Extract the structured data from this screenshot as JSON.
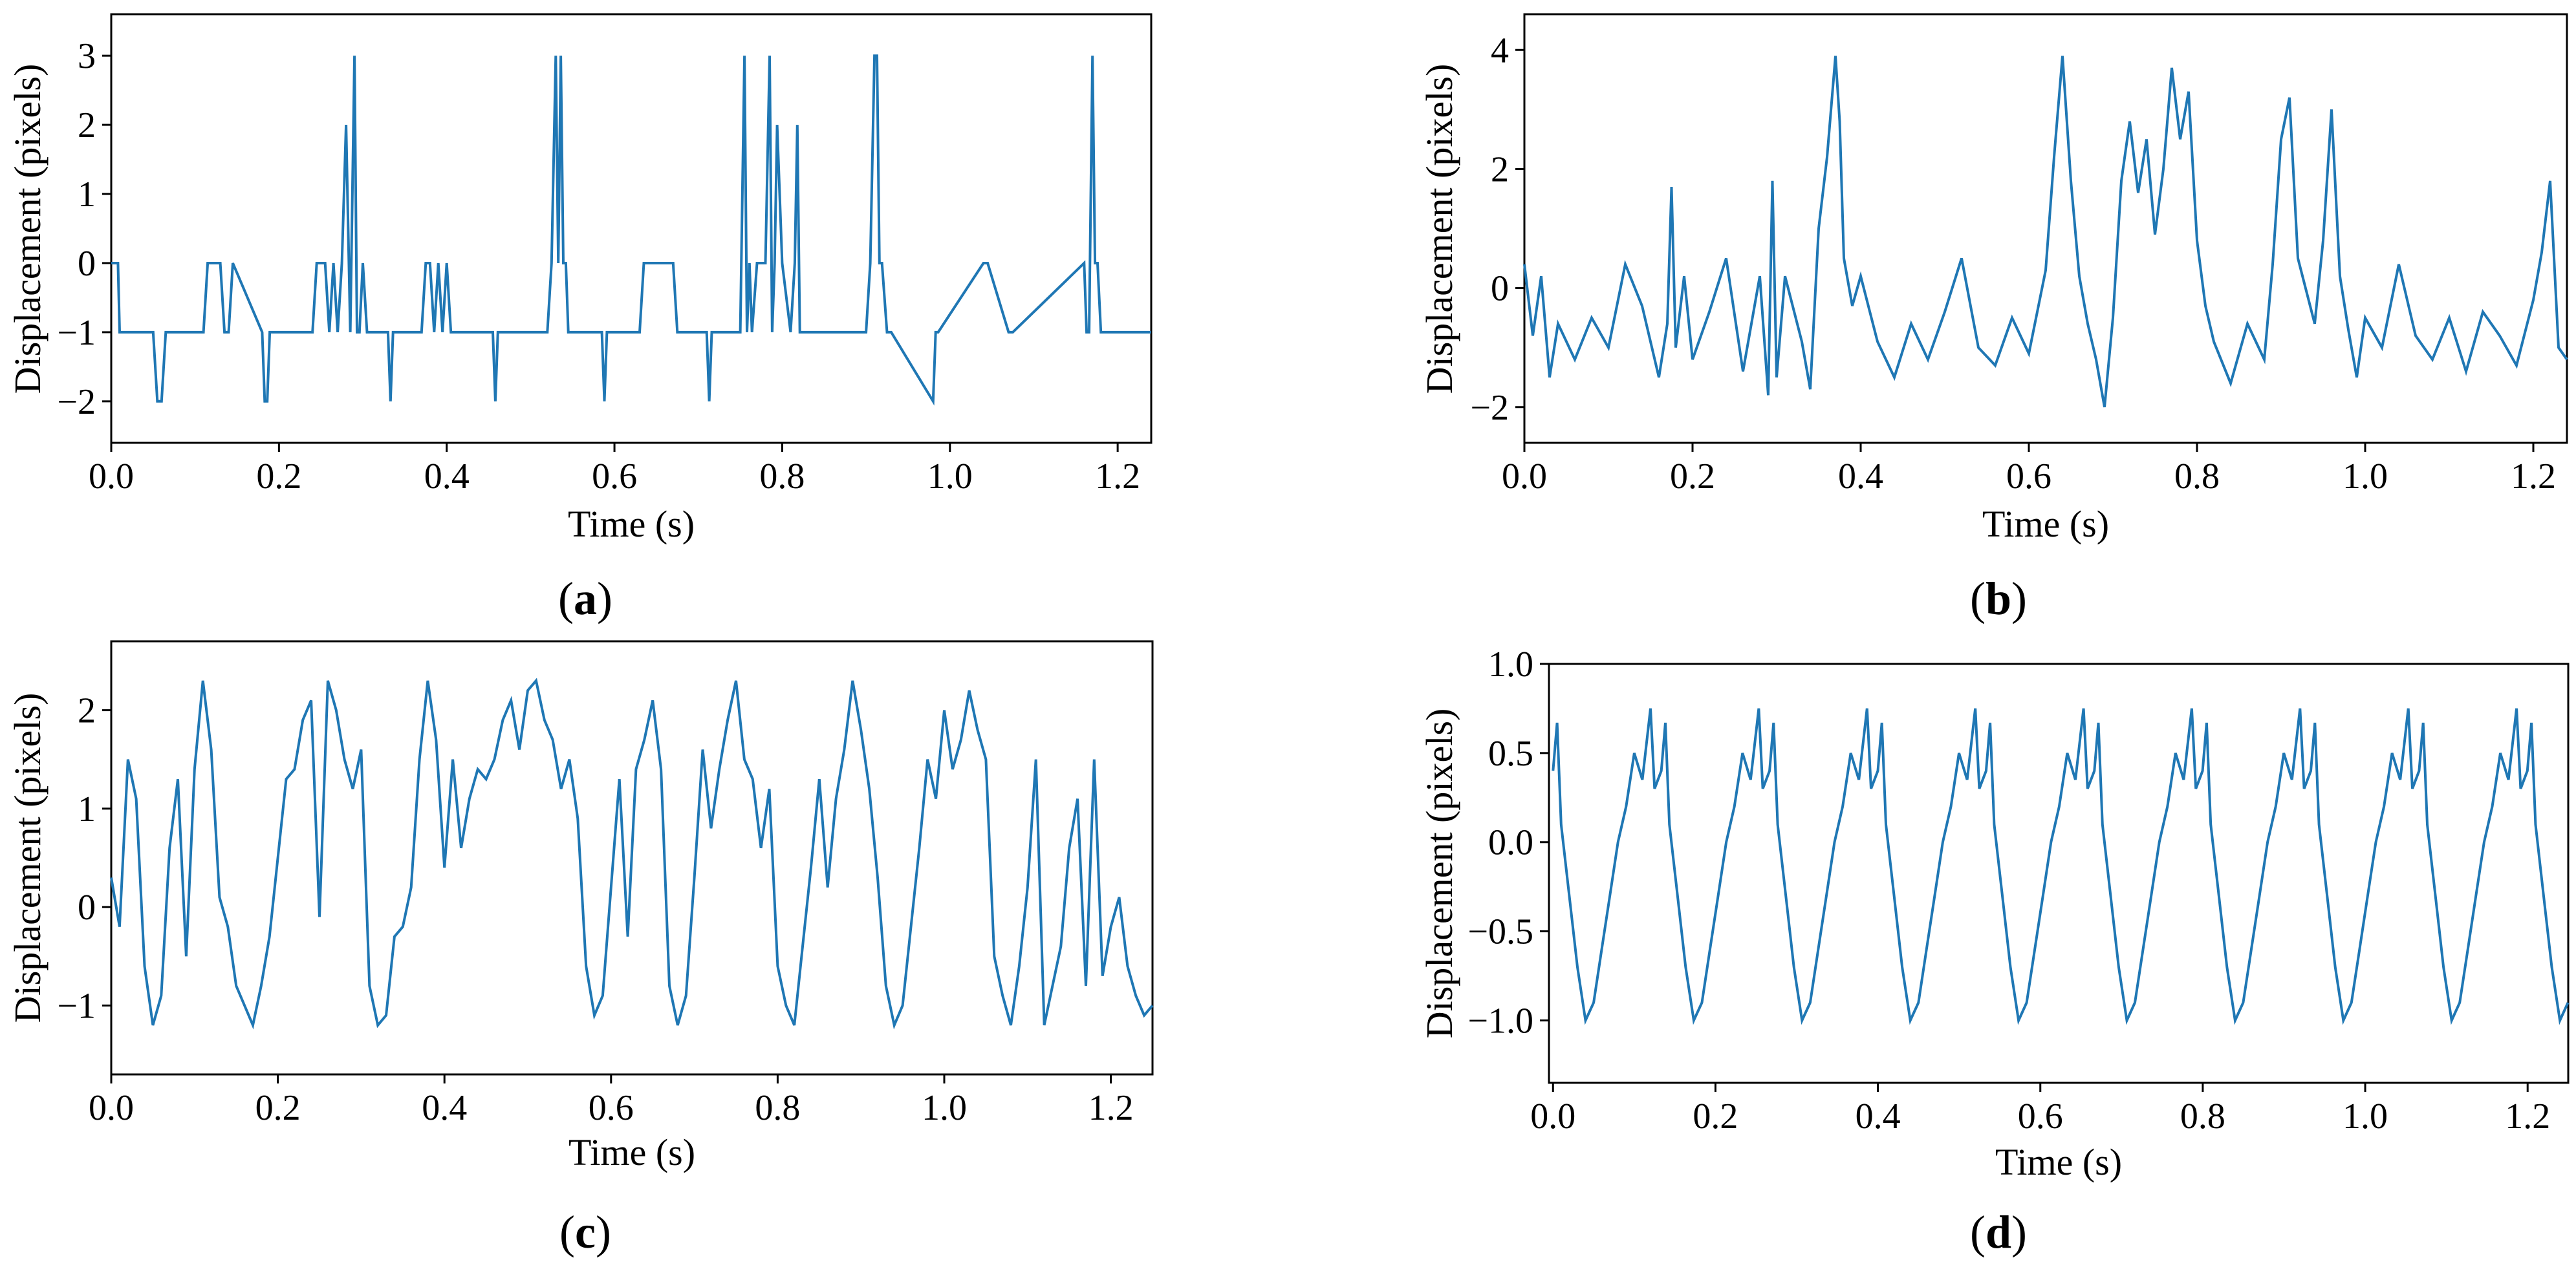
{
  "chart_data": [
    {
      "type": "line",
      "caption": {
        "open": "(",
        "letter": "a",
        "close": ")"
      },
      "xlabel": "Time (s)",
      "ylabel": "Displacement (pixels)",
      "xlim": [
        0.0,
        1.24
      ],
      "ylim": [
        -2.6,
        3.6
      ],
      "xticks": [
        0.0,
        0.2,
        0.4,
        0.6,
        0.8,
        1.0,
        1.2
      ],
      "xtick_labels": [
        "0.0",
        "0.2",
        "0.4",
        "0.6",
        "0.8",
        "1.0",
        "1.2"
      ],
      "yticks": [
        -2,
        -1,
        0,
        1,
        2,
        3
      ],
      "ytick_labels": [
        "−2",
        "−1",
        "0",
        "1",
        "2",
        "3"
      ],
      "color": "#1f77b4",
      "x": [
        0.0,
        0.008,
        0.01,
        0.05,
        0.055,
        0.06,
        0.065,
        0.11,
        0.115,
        0.13,
        0.135,
        0.14,
        0.145,
        0.18,
        0.183,
        0.186,
        0.189,
        0.24,
        0.245,
        0.255,
        0.26,
        0.265,
        0.27,
        0.275,
        0.28,
        0.285,
        0.29,
        0.293,
        0.296,
        0.3,
        0.305,
        0.33,
        0.333,
        0.336,
        0.37,
        0.375,
        0.38,
        0.385,
        0.39,
        0.395,
        0.4,
        0.405,
        0.455,
        0.458,
        0.461,
        0.52,
        0.525,
        0.53,
        0.533,
        0.536,
        0.539,
        0.542,
        0.545,
        0.585,
        0.588,
        0.591,
        0.63,
        0.635,
        0.67,
        0.675,
        0.71,
        0.713,
        0.716,
        0.75,
        0.755,
        0.758,
        0.761,
        0.764,
        0.77,
        0.78,
        0.785,
        0.788,
        0.791,
        0.794,
        0.8,
        0.81,
        0.815,
        0.818,
        0.821,
        0.824,
        0.9,
        0.905,
        0.91,
        0.913,
        0.916,
        0.919,
        0.925,
        0.93,
        0.98,
        0.983,
        0.986,
        1.04,
        1.045,
        1.07,
        1.075,
        1.16,
        1.163,
        1.166,
        1.17,
        1.173,
        1.176,
        1.18,
        1.185,
        1.19,
        1.24
      ],
      "y": [
        0,
        0,
        -1,
        -1,
        -2,
        -2,
        -1,
        -1,
        0,
        0,
        -1,
        -1,
        0,
        -1,
        -2,
        -2,
        -1,
        -1,
        0,
        0,
        -1,
        0,
        -1,
        0,
        2,
        -1,
        3,
        -1,
        -1,
        0,
        -1,
        -1,
        -2,
        -1,
        -1,
        0,
        0,
        -1,
        0,
        -1,
        0,
        -1,
        -1,
        -2,
        -1,
        -1,
        0,
        3,
        0,
        3,
        0,
        0,
        -1,
        -1,
        -2,
        -1,
        -1,
        0,
        0,
        -1,
        -1,
        -2,
        -1,
        -1,
        3,
        -1,
        0,
        -1,
        0,
        0,
        3,
        -1,
        0,
        2,
        0,
        -1,
        0,
        2,
        -1,
        -1,
        -1,
        0,
        3,
        3,
        0,
        0,
        -1,
        -1,
        -2,
        -1,
        -1,
        0,
        0,
        -1,
        -1,
        0,
        -1,
        -1,
        3,
        0,
        0,
        -1,
        -1,
        -1,
        -1
      ]
    },
    {
      "type": "line",
      "caption": {
        "open": "(",
        "letter": "b",
        "close": ")"
      },
      "xlabel": "Time (s)",
      "ylabel": "Displacement (pixels)",
      "xlim": [
        0.0,
        1.24
      ],
      "ylim": [
        -2.6,
        4.6
      ],
      "xticks": [
        0.0,
        0.2,
        0.4,
        0.6,
        0.8,
        1.0,
        1.2
      ],
      "xtick_labels": [
        "0.0",
        "0.2",
        "0.4",
        "0.6",
        "0.8",
        "1.0",
        "1.2"
      ],
      "yticks": [
        -2,
        0,
        2,
        4
      ],
      "ytick_labels": [
        "−2",
        "0",
        "2",
        "4"
      ],
      "color": "#1f77b4",
      "x": [
        0.0,
        0.01,
        0.02,
        0.03,
        0.04,
        0.06,
        0.08,
        0.1,
        0.12,
        0.14,
        0.16,
        0.17,
        0.175,
        0.18,
        0.19,
        0.2,
        0.22,
        0.24,
        0.26,
        0.28,
        0.29,
        0.295,
        0.3,
        0.31,
        0.33,
        0.34,
        0.35,
        0.36,
        0.37,
        0.375,
        0.38,
        0.39,
        0.4,
        0.42,
        0.44,
        0.46,
        0.48,
        0.5,
        0.52,
        0.54,
        0.56,
        0.58,
        0.6,
        0.62,
        0.63,
        0.64,
        0.65,
        0.66,
        0.67,
        0.68,
        0.69,
        0.7,
        0.71,
        0.72,
        0.73,
        0.74,
        0.75,
        0.76,
        0.77,
        0.78,
        0.79,
        0.8,
        0.81,
        0.82,
        0.84,
        0.86,
        0.88,
        0.89,
        0.9,
        0.91,
        0.92,
        0.94,
        0.95,
        0.96,
        0.97,
        0.98,
        0.99,
        1.0,
        1.02,
        1.04,
        1.06,
        1.08,
        1.1,
        1.12,
        1.14,
        1.16,
        1.18,
        1.2,
        1.21,
        1.22,
        1.23,
        1.24
      ],
      "y": [
        0.4,
        -0.8,
        0.2,
        -1.5,
        -0.6,
        -1.2,
        -0.5,
        -1.0,
        0.4,
        -0.3,
        -1.5,
        -0.6,
        1.7,
        -1.0,
        0.2,
        -1.2,
        -0.4,
        0.5,
        -1.4,
        0.2,
        -1.8,
        1.8,
        -1.5,
        0.2,
        -0.9,
        -1.7,
        1.0,
        2.2,
        3.9,
        2.8,
        0.5,
        -0.3,
        0.2,
        -0.9,
        -1.5,
        -0.6,
        -1.2,
        -0.4,
        0.5,
        -1.0,
        -1.3,
        -0.5,
        -1.1,
        0.3,
        2.2,
        3.9,
        1.8,
        0.2,
        -0.6,
        -1.2,
        -2.0,
        -0.5,
        1.8,
        2.8,
        1.6,
        2.5,
        0.9,
        2.0,
        3.7,
        2.5,
        3.3,
        0.8,
        -0.3,
        -0.9,
        -1.6,
        -0.6,
        -1.2,
        0.4,
        2.5,
        3.2,
        0.5,
        -0.6,
        0.8,
        3.0,
        0.2,
        -0.7,
        -1.5,
        -0.5,
        -1.0,
        0.4,
        -0.8,
        -1.2,
        -0.5,
        -1.4,
        -0.4,
        -0.8,
        -1.3,
        -0.2,
        0.6,
        1.8,
        -1.0,
        -1.2
      ]
    },
    {
      "type": "line",
      "caption": {
        "open": "(",
        "letter": "c",
        "close": ")"
      },
      "xlabel": "Time (s)",
      "ylabel": "Displacement (pixels)",
      "xlim": [
        0.0,
        1.25
      ],
      "ylim": [
        -1.7,
        2.7
      ],
      "xticks": [
        0.0,
        0.2,
        0.4,
        0.6,
        0.8,
        1.0,
        1.2
      ],
      "xtick_labels": [
        "0.0",
        "0.2",
        "0.4",
        "0.6",
        "0.8",
        "1.0",
        "1.2"
      ],
      "yticks": [
        -1,
        0,
        1,
        2
      ],
      "ytick_labels": [
        "−1",
        "0",
        "1",
        "2"
      ],
      "color": "#1f77b4",
      "x": [
        0.0,
        0.01,
        0.02,
        0.03,
        0.04,
        0.05,
        0.06,
        0.07,
        0.08,
        0.09,
        0.1,
        0.11,
        0.12,
        0.13,
        0.14,
        0.15,
        0.16,
        0.17,
        0.18,
        0.19,
        0.2,
        0.21,
        0.22,
        0.23,
        0.24,
        0.25,
        0.26,
        0.27,
        0.28,
        0.29,
        0.3,
        0.31,
        0.32,
        0.33,
        0.34,
        0.35,
        0.36,
        0.37,
        0.38,
        0.39,
        0.4,
        0.41,
        0.42,
        0.43,
        0.44,
        0.45,
        0.46,
        0.47,
        0.48,
        0.49,
        0.5,
        0.51,
        0.52,
        0.53,
        0.54,
        0.55,
        0.56,
        0.57,
        0.58,
        0.59,
        0.6,
        0.61,
        0.62,
        0.63,
        0.64,
        0.65,
        0.66,
        0.67,
        0.68,
        0.69,
        0.7,
        0.71,
        0.72,
        0.73,
        0.74,
        0.75,
        0.76,
        0.77,
        0.78,
        0.79,
        0.8,
        0.81,
        0.82,
        0.83,
        0.84,
        0.85,
        0.86,
        0.87,
        0.88,
        0.89,
        0.9,
        0.91,
        0.92,
        0.93,
        0.94,
        0.95,
        0.96,
        0.97,
        0.98,
        0.99,
        1.0,
        1.01,
        1.02,
        1.03,
        1.04,
        1.05,
        1.06,
        1.07,
        1.08,
        1.09,
        1.1,
        1.11,
        1.12,
        1.13,
        1.14,
        1.15,
        1.16,
        1.17,
        1.18,
        1.19,
        1.2,
        1.21,
        1.22,
        1.23,
        1.24,
        1.25
      ],
      "y": [
        0.3,
        -0.2,
        1.5,
        1.1,
        -0.6,
        -1.2,
        -0.9,
        0.6,
        1.3,
        -0.5,
        1.4,
        2.3,
        1.6,
        0.1,
        -0.2,
        -0.8,
        -1.0,
        -1.2,
        -0.8,
        -0.3,
        0.5,
        1.3,
        1.4,
        1.9,
        2.1,
        -0.1,
        2.3,
        2.0,
        1.5,
        1.2,
        1.6,
        -0.8,
        -1.2,
        -1.1,
        -0.3,
        -0.2,
        0.2,
        1.5,
        2.3,
        1.7,
        0.4,
        1.5,
        0.6,
        1.1,
        1.4,
        1.3,
        1.5,
        1.9,
        2.1,
        1.6,
        2.2,
        2.3,
        1.9,
        1.7,
        1.2,
        1.5,
        0.9,
        -0.6,
        -1.1,
        -0.9,
        0.2,
        1.3,
        -0.3,
        1.4,
        1.7,
        2.1,
        1.4,
        -0.8,
        -1.2,
        -0.9,
        0.3,
        1.6,
        0.8,
        1.4,
        1.9,
        2.3,
        1.5,
        1.3,
        0.6,
        1.2,
        -0.6,
        -1.0,
        -1.2,
        -0.4,
        0.4,
        1.3,
        0.2,
        1.1,
        1.6,
        2.3,
        1.8,
        1.2,
        0.3,
        -0.8,
        -1.2,
        -1.0,
        -0.2,
        0.6,
        1.5,
        1.1,
        2.0,
        1.4,
        1.7,
        2.2,
        1.8,
        1.5,
        -0.5,
        -0.9,
        -1.2,
        -0.6,
        0.2,
        1.5,
        -1.2,
        -0.8,
        -0.4,
        0.6,
        1.1,
        -0.8,
        1.5,
        -0.7,
        -0.2,
        0.1,
        -0.6,
        -0.9,
        -1.1,
        -1.0
      ]
    },
    {
      "type": "line",
      "caption": {
        "open": "(",
        "letter": "d",
        "close": ")"
      },
      "xlabel": "Time (s)",
      "ylabel": "Displacement (pixels)",
      "xlim": [
        -0.005,
        1.25
      ],
      "ylim": [
        -1.35,
        1.0
      ],
      "xticks": [
        0.0,
        0.2,
        0.4,
        0.6,
        0.8,
        1.0,
        1.2
      ],
      "xtick_labels": [
        "0.0",
        "0.2",
        "0.4",
        "0.6",
        "0.8",
        "1.0",
        "1.2"
      ],
      "yticks": [
        -1.0,
        -0.5,
        0.0,
        0.5,
        1.0
      ],
      "ytick_labels": [
        "−1.0",
        "−0.5",
        "0.0",
        "0.5",
        "1.0"
      ],
      "color": "#1f77b4",
      "period": 0.1333,
      "x": [
        0.0,
        0.005,
        0.01,
        0.02,
        0.03,
        0.04,
        0.05,
        0.06,
        0.07,
        0.08,
        0.09,
        0.1,
        0.11,
        0.12,
        0.125
      ],
      "y": [
        0.4,
        0.67,
        0.1,
        -0.3,
        -0.7,
        -1.0,
        -0.9,
        -0.6,
        -0.3,
        0.0,
        0.2,
        0.5,
        0.35,
        0.75,
        0.3
      ]
    }
  ]
}
